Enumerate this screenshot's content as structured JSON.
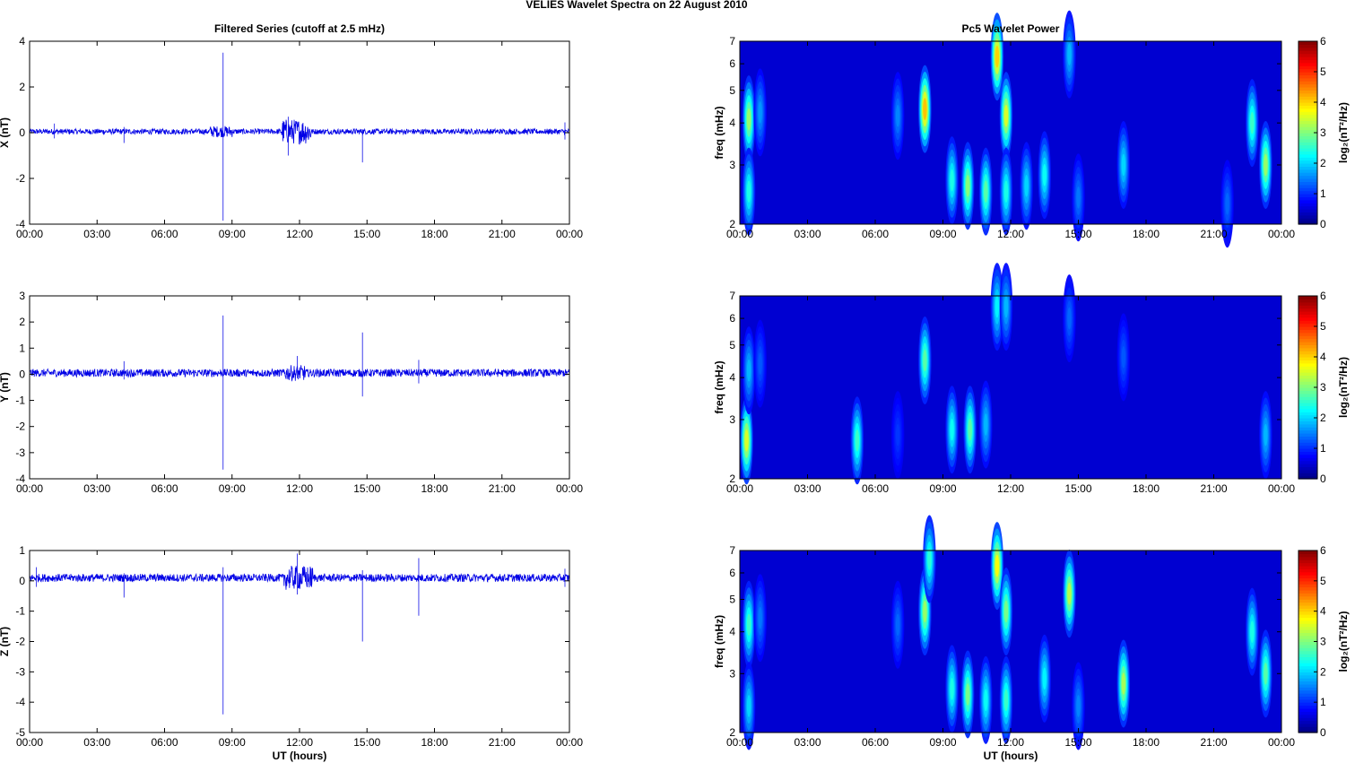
{
  "figure": {
    "title": "VELIES Wavelet Spectra on 22 August    2010"
  },
  "chart_data": [
    {
      "type": "line",
      "title": "Filtered Series (cutoff at 2.5 mHz)",
      "ylabel": "X (nT)",
      "xlabel": "",
      "xlim": [
        0,
        24
      ],
      "ylim": [
        -4,
        4
      ],
      "yticks": [
        -4,
        -2,
        0,
        2,
        4
      ],
      "xticks": [
        "00:00",
        "03:00",
        "06:00",
        "09:00",
        "12:00",
        "15:00",
        "18:00",
        "21:00",
        "00:00"
      ],
      "baseline": 0.05,
      "noise_amplitude": 0.12,
      "color": "#0000e6",
      "spikes": [
        {
          "t": 1.1,
          "min": -0.25,
          "max": 0.4
        },
        {
          "t": 4.2,
          "min": -0.45,
          "max": 0.25
        },
        {
          "t": 8.6,
          "min": -3.85,
          "max": 3.5
        },
        {
          "t": 11.5,
          "min": -1.0,
          "max": 0.7
        },
        {
          "t": 14.8,
          "min": -1.3,
          "max": 0.15
        },
        {
          "t": 23.8,
          "min": -0.3,
          "max": 0.45
        }
      ],
      "bursts": [
        {
          "start": 8.0,
          "end": 9.0,
          "amp": 0.25
        },
        {
          "start": 11.2,
          "end": 12.5,
          "amp": 0.55
        }
      ]
    },
    {
      "type": "heatmap",
      "title": "Pc5 Wavelet Power",
      "ylabel": "freq (mHz)",
      "xlabel": "",
      "xlim": [
        0,
        24
      ],
      "ylim": [
        2,
        7
      ],
      "yscale": "log",
      "yticks": [
        2,
        3,
        4,
        5,
        6,
        7
      ],
      "xticks": [
        "00:00",
        "03:00",
        "06:00",
        "09:00",
        "12:00",
        "15:00",
        "18:00",
        "21:00",
        "00:00"
      ],
      "colorbar": {
        "label": "log₂(nT²/Hz)",
        "ticks": [
          0,
          1,
          2,
          3,
          4,
          5,
          6
        ],
        "range": [
          0,
          6
        ],
        "colormap": "jet"
      },
      "blobs": [
        {
          "t": 0.4,
          "f": 4.1,
          "peak": 3.2
        },
        {
          "t": 0.4,
          "f": 2.5,
          "peak": 2.4
        },
        {
          "t": 0.9,
          "f": 4.3,
          "peak": 1.6
        },
        {
          "t": 7.0,
          "f": 4.2,
          "peak": 1.5
        },
        {
          "t": 8.2,
          "f": 4.4,
          "peak": 4.2
        },
        {
          "t": 9.4,
          "f": 2.7,
          "peak": 2.4
        },
        {
          "t": 10.1,
          "f": 2.6,
          "peak": 3.1
        },
        {
          "t": 10.9,
          "f": 2.5,
          "peak": 2.8
        },
        {
          "t": 11.4,
          "f": 6.3,
          "peak": 4.1
        },
        {
          "t": 11.8,
          "f": 4.2,
          "peak": 3.6
        },
        {
          "t": 11.8,
          "f": 2.5,
          "peak": 2.4
        },
        {
          "t": 12.7,
          "f": 2.6,
          "peak": 2.0
        },
        {
          "t": 13.5,
          "f": 2.8,
          "peak": 2.3
        },
        {
          "t": 14.6,
          "f": 6.4,
          "peak": 1.8
        },
        {
          "t": 15.0,
          "f": 2.4,
          "peak": 1.4
        },
        {
          "t": 17.0,
          "f": 3.0,
          "peak": 2.0
        },
        {
          "t": 21.6,
          "f": 2.3,
          "peak": 1.3
        },
        {
          "t": 22.7,
          "f": 4.0,
          "peak": 2.6
        },
        {
          "t": 23.3,
          "f": 3.0,
          "peak": 3.2
        }
      ]
    },
    {
      "type": "line",
      "title": "",
      "ylabel": "Y (nT)",
      "xlabel": "",
      "xlim": [
        0,
        24
      ],
      "ylim": [
        -4,
        3
      ],
      "yticks": [
        -4,
        -3,
        -2,
        -1,
        0,
        1,
        2,
        3
      ],
      "xticks": [
        "00:00",
        "03:00",
        "06:00",
        "09:00",
        "12:00",
        "15:00",
        "18:00",
        "21:00",
        "00:00"
      ],
      "baseline": 0.05,
      "noise_amplitude": 0.15,
      "color": "#0000e6",
      "spikes": [
        {
          "t": 4.2,
          "min": -0.2,
          "max": 0.5
        },
        {
          "t": 8.6,
          "min": -3.65,
          "max": 2.25
        },
        {
          "t": 11.9,
          "min": -0.15,
          "max": 0.7
        },
        {
          "t": 14.8,
          "min": -0.85,
          "max": 1.6
        },
        {
          "t": 17.3,
          "min": -0.35,
          "max": 0.55
        }
      ],
      "bursts": [
        {
          "start": 11.3,
          "end": 12.3,
          "amp": 0.3
        }
      ]
    },
    {
      "type": "heatmap",
      "title": "",
      "ylabel": "freq (mHz)",
      "xlabel": "",
      "xlim": [
        0,
        24
      ],
      "ylim": [
        2,
        7
      ],
      "yscale": "log",
      "yticks": [
        2,
        3,
        4,
        5,
        6,
        7
      ],
      "xticks": [
        "00:00",
        "03:00",
        "06:00",
        "09:00",
        "12:00",
        "15:00",
        "18:00",
        "21:00",
        "00:00"
      ],
      "colorbar": {
        "label": "log₂(nT²/Hz)",
        "ticks": [
          0,
          1,
          2,
          3,
          4,
          5,
          6
        ],
        "range": [
          0,
          6
        ],
        "colormap": "jet"
      },
      "blobs": [
        {
          "t": 0.3,
          "f": 2.6,
          "peak": 3.6
        },
        {
          "t": 0.4,
          "f": 4.2,
          "peak": 1.8
        },
        {
          "t": 0.9,
          "f": 4.4,
          "peak": 1.2
        },
        {
          "t": 5.2,
          "f": 2.6,
          "peak": 2.6
        },
        {
          "t": 7.0,
          "f": 2.7,
          "peak": 1.0
        },
        {
          "t": 8.2,
          "f": 4.5,
          "peak": 2.8
        },
        {
          "t": 9.4,
          "f": 2.8,
          "peak": 2.3
        },
        {
          "t": 10.2,
          "f": 2.8,
          "peak": 2.8
        },
        {
          "t": 10.9,
          "f": 2.9,
          "peak": 1.8
        },
        {
          "t": 11.4,
          "f": 6.5,
          "peak": 2.2
        },
        {
          "t": 11.8,
          "f": 6.5,
          "peak": 1.8
        },
        {
          "t": 14.6,
          "f": 6.0,
          "peak": 1.3
        },
        {
          "t": 17.0,
          "f": 4.6,
          "peak": 1.2
        },
        {
          "t": 23.3,
          "f": 2.7,
          "peak": 1.8
        }
      ]
    },
    {
      "type": "line",
      "title": "",
      "ylabel": "Z (nT)",
      "xlabel": "UT (hours)",
      "xlim": [
        0,
        24
      ],
      "ylim": [
        -5,
        1
      ],
      "yticks": [
        -5,
        -4,
        -3,
        -2,
        -1,
        0,
        1
      ],
      "xticks": [
        "00:00",
        "03:00",
        "06:00",
        "09:00",
        "12:00",
        "15:00",
        "18:00",
        "21:00",
        "00:00"
      ],
      "baseline": 0.1,
      "noise_amplitude": 0.13,
      "color": "#0000e6",
      "spikes": [
        {
          "t": 0.3,
          "min": -0.2,
          "max": 0.45
        },
        {
          "t": 4.2,
          "min": -0.55,
          "max": 0.25
        },
        {
          "t": 8.6,
          "min": -4.4,
          "max": 0.45
        },
        {
          "t": 11.9,
          "min": -0.45,
          "max": 0.9
        },
        {
          "t": 14.8,
          "min": -2.0,
          "max": 0.35
        },
        {
          "t": 17.3,
          "min": -1.15,
          "max": 0.75
        },
        {
          "t": 23.8,
          "min": -0.2,
          "max": 0.4
        }
      ],
      "bursts": [
        {
          "start": 11.3,
          "end": 12.6,
          "amp": 0.4
        }
      ]
    },
    {
      "type": "heatmap",
      "title": "",
      "ylabel": "freq (mHz)",
      "xlabel": "UT (hours)",
      "xlim": [
        0,
        24
      ],
      "ylim": [
        2,
        7
      ],
      "yscale": "log",
      "yticks": [
        2,
        3,
        4,
        5,
        6,
        7
      ],
      "xticks": [
        "00:00",
        "03:00",
        "06:00",
        "09:00",
        "12:00",
        "15:00",
        "18:00",
        "21:00",
        "00:00"
      ],
      "colorbar": {
        "label": "log₂(nT²/Hz)",
        "ticks": [
          0,
          1,
          2,
          3,
          4,
          5,
          6
        ],
        "range": [
          0,
          6
        ],
        "colormap": "jet"
      },
      "blobs": [
        {
          "t": 0.4,
          "f": 4.2,
          "peak": 2.6
        },
        {
          "t": 0.4,
          "f": 2.4,
          "peak": 2.0
        },
        {
          "t": 0.9,
          "f": 4.4,
          "peak": 1.4
        },
        {
          "t": 7.0,
          "f": 4.2,
          "peak": 1.3
        },
        {
          "t": 8.2,
          "f": 4.6,
          "peak": 3.2
        },
        {
          "t": 8.4,
          "f": 6.6,
          "peak": 2.5
        },
        {
          "t": 9.4,
          "f": 2.7,
          "peak": 2.4
        },
        {
          "t": 10.1,
          "f": 2.6,
          "peak": 3.0
        },
        {
          "t": 10.9,
          "f": 2.5,
          "peak": 2.3
        },
        {
          "t": 11.4,
          "f": 6.3,
          "peak": 3.8
        },
        {
          "t": 11.8,
          "f": 4.6,
          "peak": 3.0
        },
        {
          "t": 11.8,
          "f": 2.5,
          "peak": 2.6
        },
        {
          "t": 13.5,
          "f": 2.9,
          "peak": 2.2
        },
        {
          "t": 14.6,
          "f": 5.2,
          "peak": 3.4
        },
        {
          "t": 15.0,
          "f": 2.4,
          "peak": 1.5
        },
        {
          "t": 17.0,
          "f": 2.8,
          "peak": 3.3
        },
        {
          "t": 22.7,
          "f": 4.0,
          "peak": 2.4
        },
        {
          "t": 23.3,
          "f": 3.0,
          "peak": 2.8
        }
      ]
    }
  ]
}
